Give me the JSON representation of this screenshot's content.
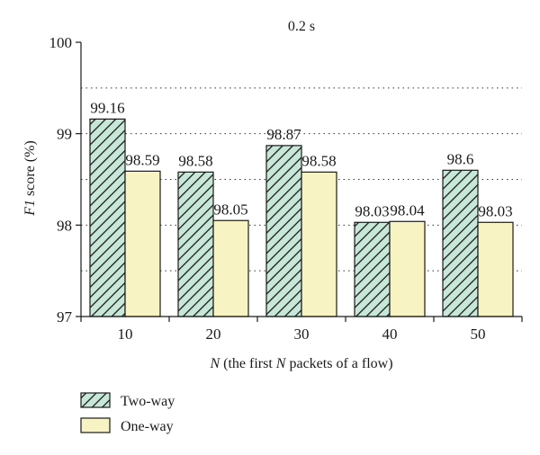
{
  "chart_data": {
    "type": "bar",
    "title": "0.2 s",
    "xlabel_italic": "N",
    "xlabel_rest": " (the first ",
    "xlabel_italic2": "N",
    "xlabel_tail": " packets of a flow)",
    "ylabel_italic": "F1",
    "ylabel_rest": " score (%)",
    "categories": [
      "10",
      "20",
      "30",
      "40",
      "50"
    ],
    "ylim": [
      97,
      100
    ],
    "yticks": [
      "97",
      "98",
      "99",
      "100"
    ],
    "grid": "horizontal dotted at 0.5 steps",
    "legend_position": "bottom-left",
    "series": [
      {
        "name": "Two-way",
        "values": [
          99.16,
          98.58,
          98.87,
          98.03,
          98.6
        ],
        "labels": [
          "99.16",
          "98.58",
          "98.87",
          "98.03",
          "98.6"
        ],
        "color": "#c7e8d9",
        "pattern": "diagonal-hatch"
      },
      {
        "name": "One-way",
        "values": [
          98.59,
          98.05,
          98.58,
          98.04,
          98.03
        ],
        "labels": [
          "98.59",
          "98.05",
          "98.58",
          "98.04",
          "98.03"
        ],
        "color": "#f8f3c2",
        "pattern": "solid"
      }
    ]
  }
}
